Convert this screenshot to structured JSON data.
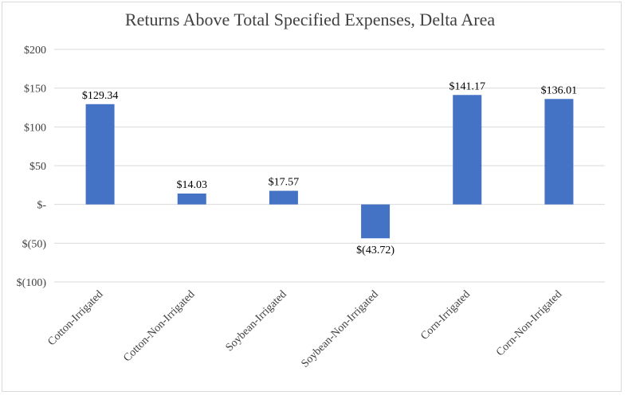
{
  "chart_data": {
    "type": "bar",
    "title": "Returns Above Total Specified Expenses, Delta Area",
    "categories": [
      "Cotton-Irrigated",
      "Cotton-Non-Irrigated",
      "Soybean-Irrigated",
      "Soybean-Non-Irrigated",
      "Corn-Irrigated",
      "Corn-Non-Irrigated"
    ],
    "values": [
      129.34,
      14.03,
      17.57,
      -43.72,
      141.17,
      136.01
    ],
    "data_labels": [
      "$129.34",
      "$14.03",
      "$17.57",
      "$(43.72)",
      "$141.17",
      "$136.01"
    ],
    "yticks": [
      200,
      150,
      100,
      50,
      0,
      -50,
      -100
    ],
    "ytick_labels": [
      "$200",
      "$150",
      "$100",
      "$50",
      "$-",
      "$(50)",
      "$(100)"
    ],
    "ylim": [
      -100,
      200
    ],
    "grid": true,
    "legend": "none",
    "bar_color": "#4472c4",
    "grid_color": "#d9d9d9"
  }
}
